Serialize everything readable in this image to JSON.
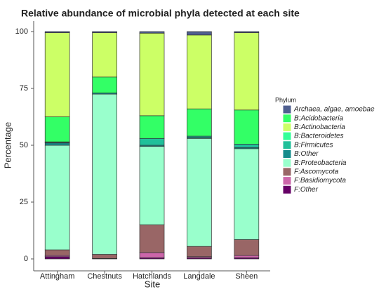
{
  "chart_data": {
    "type": "stacked-bar",
    "title": "Relative abundance of microbial phyla detected at each site",
    "x_label": "Site",
    "y_label": "Percentage",
    "legend_title": "Phylum",
    "legend_position": "right",
    "categories": [
      "Attingham",
      "Chestnuts",
      "Hatchlands",
      "Langdale",
      "Sheen"
    ],
    "ylim": [
      0,
      100
    ],
    "yticks": [
      0,
      25,
      50,
      75,
      100
    ],
    "grid": false,
    "series": [
      {
        "name": "Archaea, algae, amoebae",
        "color": "#4f5f8f",
        "values": [
          0.5,
          0.5,
          0.7,
          1.5,
          0.5
        ]
      },
      {
        "name": "B:Acidobacteria",
        "color": "#33ff66",
        "values": [
          11,
          7,
          10,
          12,
          15
        ]
      },
      {
        "name": "B:Actinobacteria",
        "color": "#ccff66",
        "values": [
          37,
          19.5,
          36.3,
          32.5,
          34
        ]
      },
      {
        "name": "B:Bacteroidetes",
        "color": "#33ff99",
        "values": [
          0.2,
          0,
          0,
          0,
          0
        ]
      },
      {
        "name": "B:Firmicutes",
        "color": "#20c09a",
        "values": [
          0.3,
          0,
          3,
          0.5,
          1.5
        ]
      },
      {
        "name": "B:Other",
        "color": "#148c8c",
        "values": [
          1,
          0.5,
          0.5,
          0.5,
          0.5
        ]
      },
      {
        "name": "B:Proteobacteria",
        "color": "#99ffcc",
        "values": [
          46,
          70.5,
          34.5,
          47.5,
          40
        ]
      },
      {
        "name": "F:Ascomycota",
        "color": "#996666",
        "values": [
          2.5,
          1.8,
          12.2,
          4.5,
          7
        ]
      },
      {
        "name": "F:Basidiomycota",
        "color": "#cc66aa",
        "values": [
          0.5,
          0.2,
          2.3,
          0.5,
          1
        ]
      },
      {
        "name": "F:Other",
        "color": "#660066",
        "values": [
          1,
          0,
          0.5,
          0.5,
          0.5
        ]
      }
    ]
  }
}
